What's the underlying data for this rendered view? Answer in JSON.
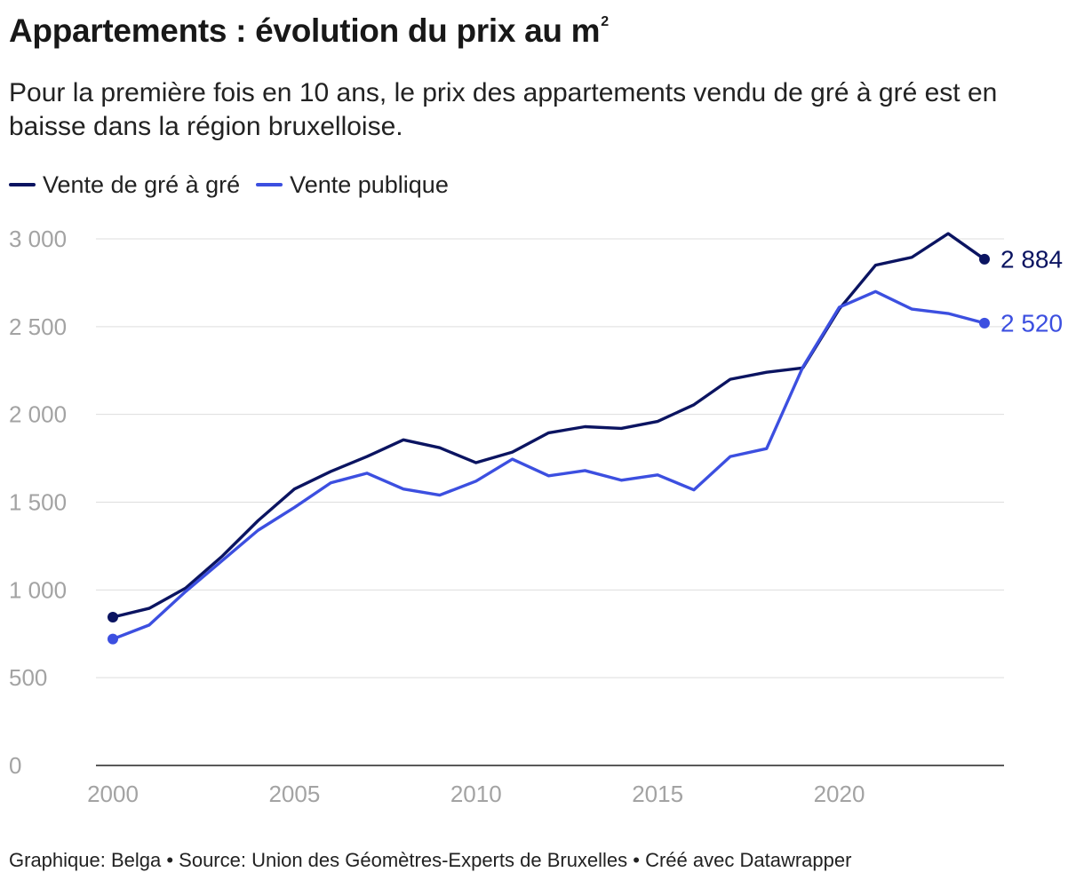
{
  "title": "Appartements : évolution du prix au m",
  "title_superscript": "2",
  "subtitle": "Pour la première fois en 10 ans, le prix des appartements vendu de gré à gré est en baisse dans la région bruxelloise.",
  "footer": "Graphique: Belga • Source: Union des Géomètres-Experts de Bruxelles • Créé avec Datawrapper",
  "colors": {
    "gre_a_gre": "#0b1461",
    "publique": "#3c4fe0",
    "axis_text": "#a3a3a3",
    "grid": "#dddddd",
    "baseline": "#222222"
  },
  "chart_data": {
    "type": "line",
    "title": "Appartements : évolution du prix au m²",
    "xlabel": "",
    "ylabel": "",
    "x": [
      2000,
      2001,
      2002,
      2003,
      2004,
      2005,
      2006,
      2007,
      2008,
      2009,
      2010,
      2011,
      2012,
      2013,
      2014,
      2015,
      2016,
      2017,
      2018,
      2019,
      2020,
      2021,
      2022,
      2023,
      2024
    ],
    "xlim": [
      2000,
      2024
    ],
    "ylim": [
      0,
      3000
    ],
    "x_ticks": [
      2000,
      2005,
      2010,
      2015,
      2020
    ],
    "x_tick_labels": [
      "2000",
      "2005",
      "2010",
      "2015",
      "2020"
    ],
    "y_ticks": [
      0,
      500,
      1000,
      1500,
      2000,
      2500,
      3000
    ],
    "y_tick_labels": [
      "0",
      "500",
      "1 000",
      "1 500",
      "2 000",
      "2 500",
      "3 000"
    ],
    "grid": true,
    "legend_position": "top-left",
    "series": [
      {
        "name": "Vente de gré à gré",
        "values": [
          845,
          895,
          1010,
          1190,
          1395,
          1575,
          1675,
          1760,
          1855,
          1810,
          1725,
          1785,
          1895,
          1930,
          1920,
          1960,
          2055,
          2200,
          2240,
          2265,
          2600,
          2850,
          2895,
          3030,
          2884
        ],
        "end_label": "2 884"
      },
      {
        "name": "Vente publique",
        "values": [
          720,
          800,
          990,
          1165,
          1340,
          1470,
          1610,
          1665,
          1575,
          1540,
          1620,
          1745,
          1650,
          1680,
          1625,
          1655,
          1570,
          1760,
          1805,
          2270,
          2610,
          2700,
          2600,
          2575,
          2520
        ],
        "end_label": "2 520"
      }
    ]
  }
}
